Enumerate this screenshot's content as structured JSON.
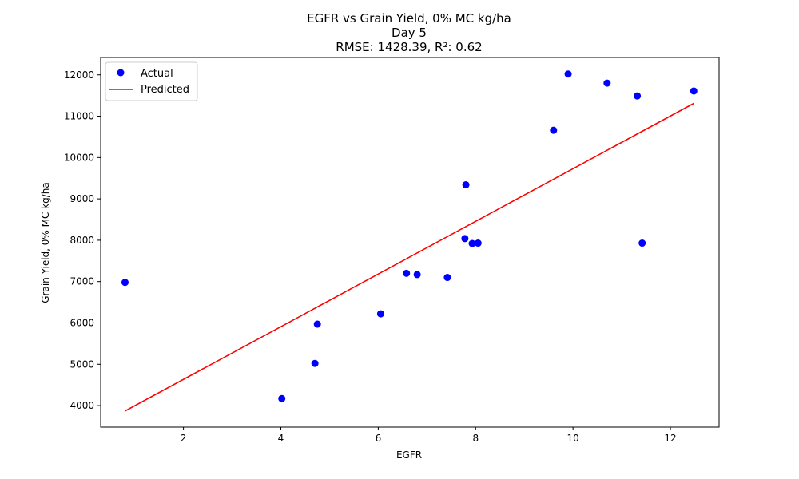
{
  "chart_data": {
    "type": "scatter",
    "title_lines": [
      "EGFR vs Grain Yield, 0% MC kg/ha",
      "Day 5",
      "RMSE: 1428.39, R²: 0.62"
    ],
    "xlabel": "EGFR",
    "ylabel": "Grain Yield, 0% MC kg/ha",
    "xlim": [
      0.3,
      13.0
    ],
    "ylim": [
      3480,
      12420
    ],
    "xticks": [
      2,
      4,
      6,
      8,
      10,
      12
    ],
    "yticks": [
      4000,
      5000,
      6000,
      7000,
      8000,
      9000,
      10000,
      11000,
      12000
    ],
    "grid": false,
    "legend_position": "top-left",
    "series": [
      {
        "name": "Actual",
        "kind": "scatter",
        "color": "#0000ff",
        "points": [
          [
            0.8,
            6980
          ],
          [
            4.02,
            4170
          ],
          [
            4.7,
            5020
          ],
          [
            4.75,
            5970
          ],
          [
            6.05,
            6220
          ],
          [
            6.58,
            7200
          ],
          [
            6.8,
            7170
          ],
          [
            7.42,
            7100
          ],
          [
            7.78,
            8040
          ],
          [
            7.8,
            9340
          ],
          [
            7.93,
            7920
          ],
          [
            8.05,
            7930
          ],
          [
            9.6,
            10660
          ],
          [
            9.9,
            12020
          ],
          [
            10.7,
            11800
          ],
          [
            11.32,
            11490
          ],
          [
            11.42,
            7930
          ],
          [
            12.48,
            11610
          ]
        ]
      },
      {
        "name": "Predicted",
        "kind": "line",
        "color": "#ff0000",
        "points": [
          [
            0.8,
            3870
          ],
          [
            12.48,
            11310
          ]
        ]
      }
    ]
  }
}
